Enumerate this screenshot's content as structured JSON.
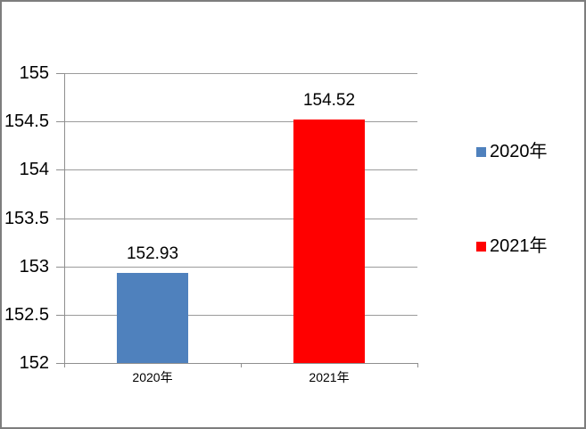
{
  "chart_data": {
    "type": "bar",
    "title": "",
    "categories": [
      "2020年",
      "2021年"
    ],
    "series": [
      {
        "name": "2020年",
        "value": 152.93,
        "data_label": "152.93",
        "color": "#4f81bd"
      },
      {
        "name": "2021年",
        "value": 154.52,
        "data_label": "154.52",
        "color": "#ff0000"
      }
    ],
    "ylim": [
      152,
      155
    ],
    "ytick_step": 0.5,
    "ytick_labels": [
      "152",
      "152.5",
      "153",
      "153.5",
      "154",
      "154.5",
      "155"
    ],
    "grid": true,
    "legend_position": "right",
    "legend": [
      {
        "label": "2020年",
        "color": "#4f81bd"
      },
      {
        "label": "2021年",
        "color": "#ff0000"
      }
    ],
    "colors": {
      "grid": "#9b9b9b",
      "axis": "#8f8f8f",
      "text": "#000000",
      "frame_border": "#7d7d7d",
      "background": "#ffffff"
    }
  }
}
